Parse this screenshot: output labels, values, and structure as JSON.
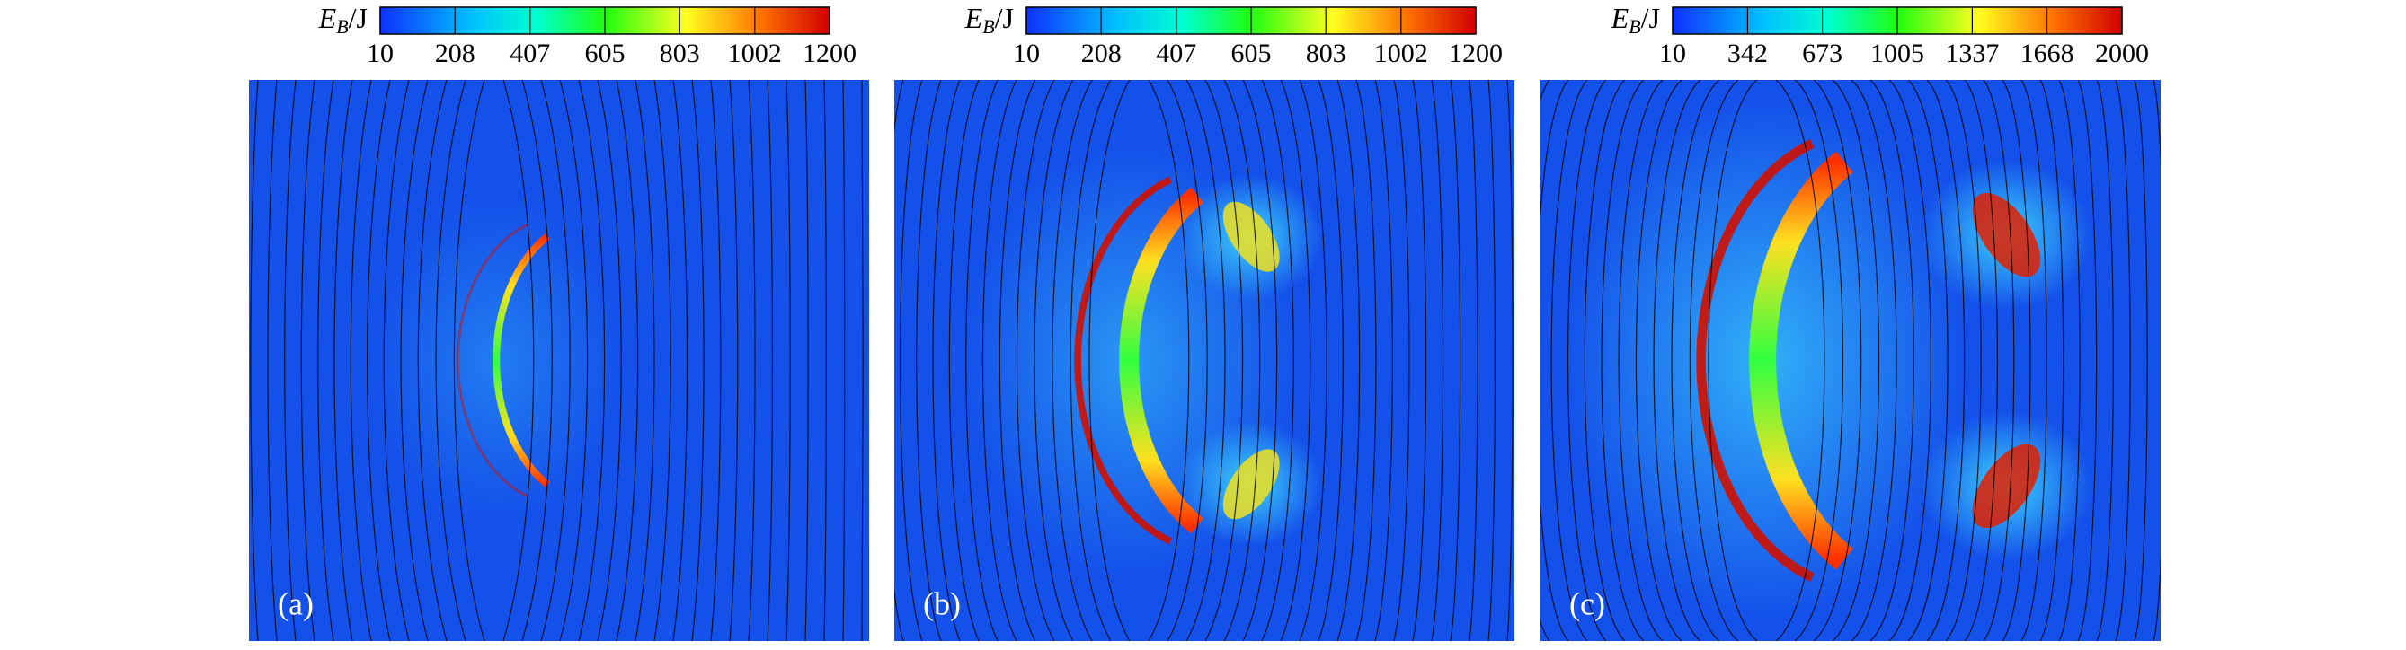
{
  "panels": [
    {
      "label": "(a)",
      "colorbar": {
        "symbol": "E",
        "subscript": "B",
        "suffix": "/J",
        "lim": [
          10,
          1200
        ],
        "ticks": [
          10,
          208,
          407,
          605,
          803,
          1002,
          1200
        ]
      }
    },
    {
      "label": "(b)",
      "colorbar": {
        "symbol": "E",
        "subscript": "B",
        "suffix": "/J",
        "lim": [
          10,
          1200
        ],
        "ticks": [
          10,
          208,
          407,
          605,
          803,
          1002,
          1200
        ]
      }
    },
    {
      "label": "(c)",
      "colorbar": {
        "symbol": "E",
        "subscript": "B",
        "suffix": "/J",
        "lim": [
          10,
          2000
        ],
        "ticks": [
          10,
          342,
          673,
          1005,
          1337,
          1668,
          2000
        ]
      }
    }
  ]
}
